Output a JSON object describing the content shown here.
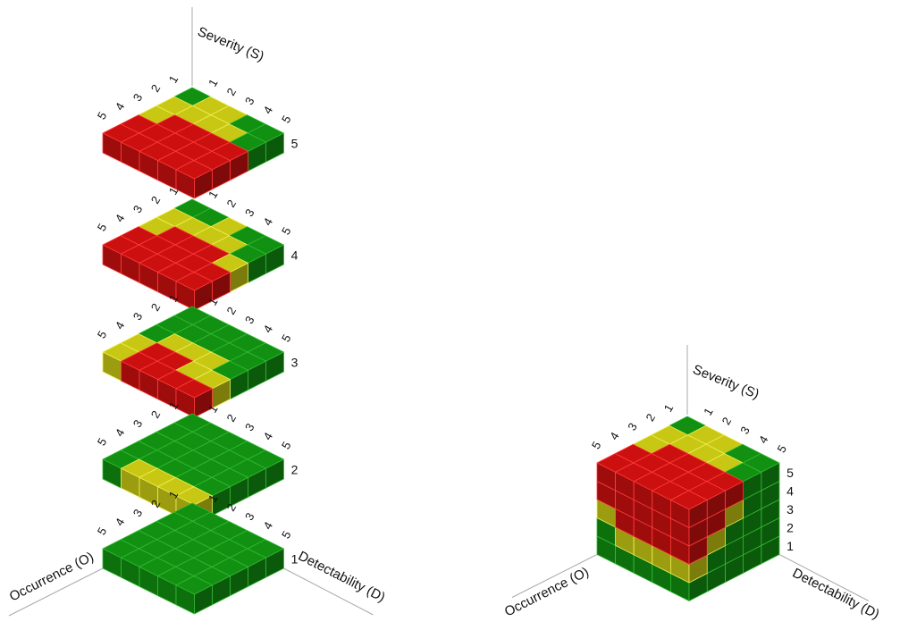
{
  "axes": {
    "severity": "Severity (S)",
    "occurrence": "Occurrence (O)",
    "detectability": "Detectability (D)"
  },
  "ticks": [
    "1",
    "2",
    "3",
    "4",
    "5"
  ],
  "colors": {
    "green": "#119011",
    "yellow": "#c8c814",
    "red": "#cc1010"
  },
  "exploded": {
    "layers": [
      {
        "severity": "5",
        "grid": [
          [
            "G",
            "Y",
            "Y",
            "G",
            "G"
          ],
          [
            "Y",
            "Y",
            "Y",
            "Y",
            "G"
          ],
          [
            "Y",
            "R",
            "R",
            "R",
            "R"
          ],
          [
            "R",
            "R",
            "R",
            "R",
            "R"
          ],
          [
            "R",
            "R",
            "R",
            "R",
            "R"
          ]
        ]
      },
      {
        "severity": "4",
        "grid": [
          [
            "G",
            "G",
            "Y",
            "G",
            "G"
          ],
          [
            "Y",
            "Y",
            "Y",
            "Y",
            "G"
          ],
          [
            "Y",
            "R",
            "R",
            "R",
            "Y"
          ],
          [
            "R",
            "R",
            "R",
            "R",
            "R"
          ],
          [
            "R",
            "R",
            "R",
            "R",
            "R"
          ]
        ]
      },
      {
        "severity": "3",
        "grid": [
          [
            "G",
            "G",
            "G",
            "G",
            "G"
          ],
          [
            "G",
            "G",
            "G",
            "G",
            "G"
          ],
          [
            "G",
            "Y",
            "Y",
            "Y",
            "G"
          ],
          [
            "Y",
            "R",
            "R",
            "Y",
            "Y"
          ],
          [
            "Y",
            "R",
            "R",
            "R",
            "R"
          ]
        ]
      },
      {
        "severity": "2",
        "grid": [
          [
            "G",
            "G",
            "G",
            "G",
            "G"
          ],
          [
            "G",
            "G",
            "G",
            "G",
            "G"
          ],
          [
            "G",
            "G",
            "G",
            "G",
            "G"
          ],
          [
            "G",
            "G",
            "G",
            "G",
            "G"
          ],
          [
            "G",
            "Y",
            "Y",
            "Y",
            "Y"
          ]
        ]
      },
      {
        "severity": "1",
        "grid": [
          [
            "G",
            "G",
            "G",
            "G",
            "G"
          ],
          [
            "G",
            "G",
            "G",
            "G",
            "G"
          ],
          [
            "G",
            "G",
            "G",
            "G",
            "G"
          ],
          [
            "G",
            "G",
            "G",
            "G",
            "G"
          ],
          [
            "G",
            "G",
            "G",
            "G",
            "G"
          ]
        ]
      }
    ]
  },
  "cube": {
    "level_labels": [
      "5",
      "4",
      "3",
      "2",
      "1"
    ]
  }
}
